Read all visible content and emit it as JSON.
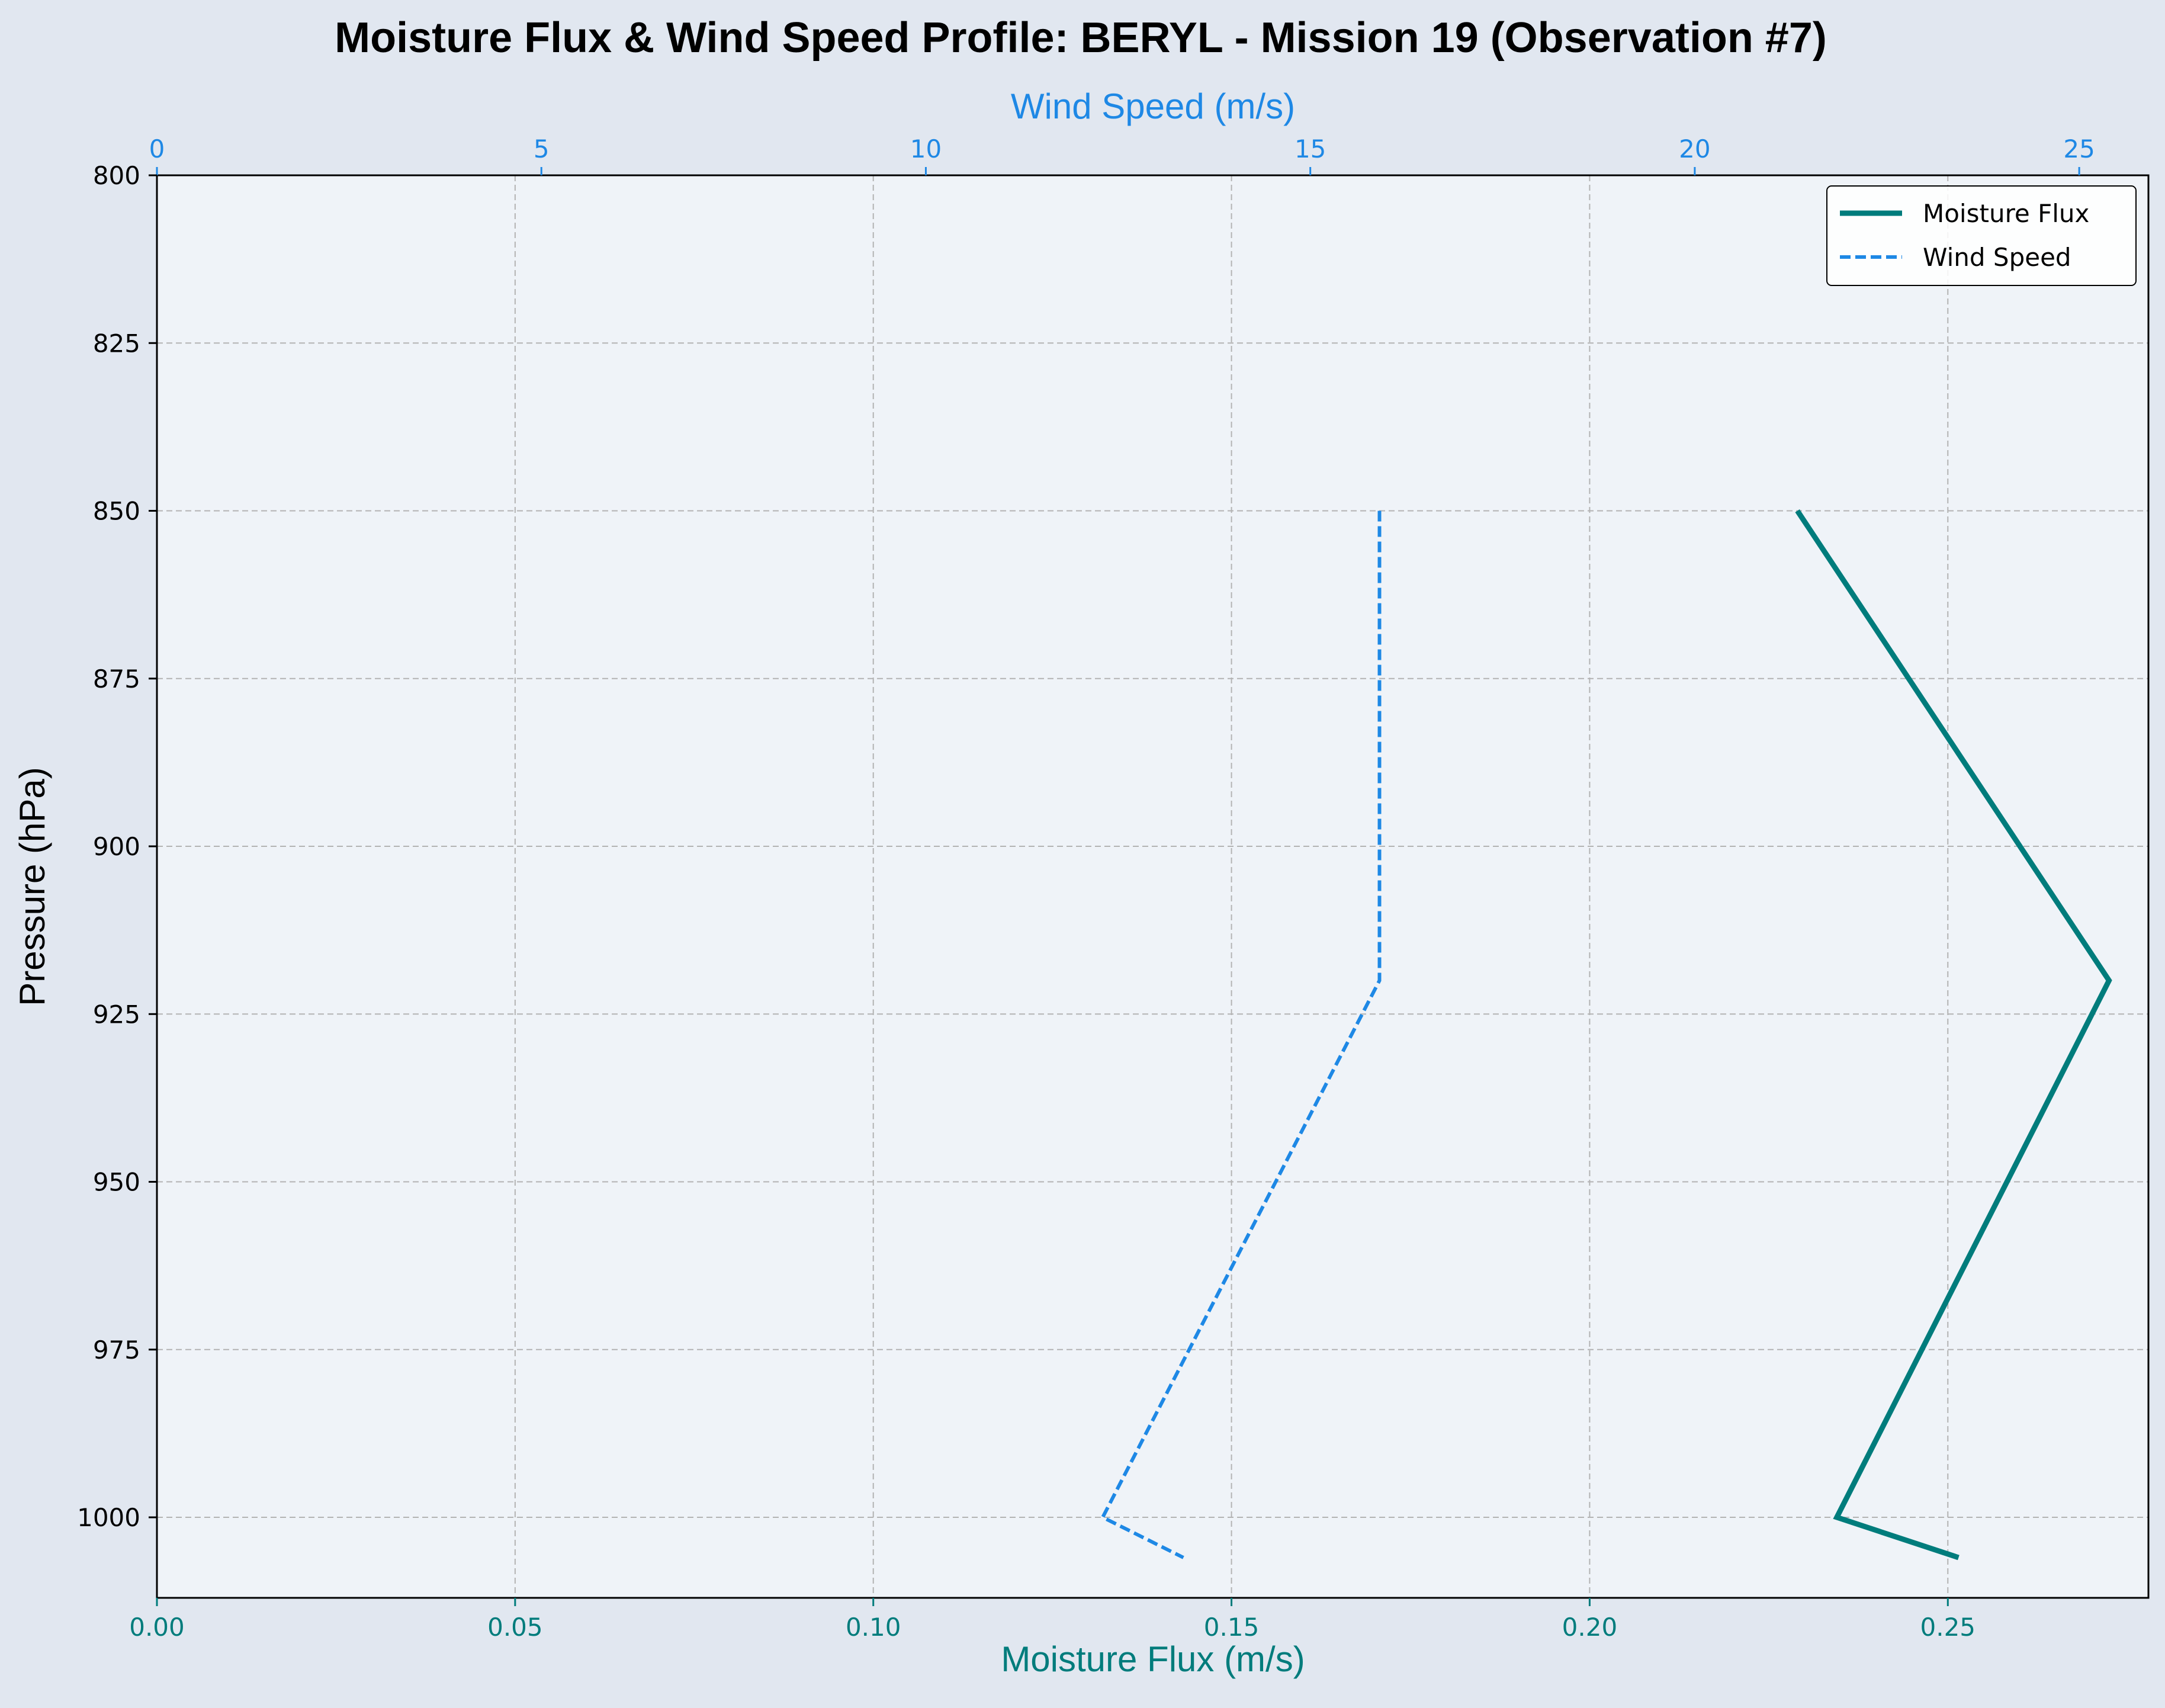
{
  "chart_data": {
    "type": "line",
    "title": "Moisture Flux & Wind Speed Profile: BERYL - Mission 19 (Observation #7)",
    "xlabel": "Moisture Flux (m/s)",
    "x2label": "Wind Speed (m/s)",
    "ylabel": "Pressure (hPa)",
    "xlim": [
      0,
      0.278
    ],
    "x2lim": [
      0,
      25.9
    ],
    "ylim": [
      1012,
      800
    ],
    "y_inverted": true,
    "xticks": [
      "0.00",
      "0.05",
      "0.10",
      "0.15",
      "0.20",
      "0.25"
    ],
    "xtick_values": [
      0,
      0.05,
      0.1,
      0.15,
      0.2,
      0.25
    ],
    "x2ticks": [
      "0",
      "5",
      "10",
      "15",
      "20",
      "25"
    ],
    "x2tick_values": [
      0,
      5,
      10,
      15,
      20,
      25
    ],
    "yticks": [
      "800",
      "825",
      "850",
      "875",
      "900",
      "925",
      "950",
      "975",
      "1000"
    ],
    "ytick_values": [
      800,
      825,
      850,
      875,
      900,
      925,
      950,
      975,
      1000
    ],
    "grid": true,
    "legend_position": "top-right",
    "series": [
      {
        "name": "Moisture Flux",
        "axis": "bottom",
        "color": "#007c7c",
        "style": "solid",
        "points": [
          [
            0.229,
            850
          ],
          [
            0.2725,
            920
          ],
          [
            0.2345,
            1000
          ],
          [
            0.2515,
            1006
          ]
        ]
      },
      {
        "name": "Wind Speed",
        "axis": "top",
        "color": "#1e88e5",
        "style": "dashed",
        "points": [
          [
            15.9,
            850
          ],
          [
            15.9,
            920
          ],
          [
            12.3,
            1000
          ],
          [
            13.35,
            1006
          ]
        ]
      }
    ],
    "colors": {
      "figure_bg": "#e1e7f0",
      "plot_bg": "#eff3f8",
      "bottom_axis": "#007c7c",
      "top_axis": "#1e88e5",
      "grid": "#b3b3b3"
    }
  }
}
